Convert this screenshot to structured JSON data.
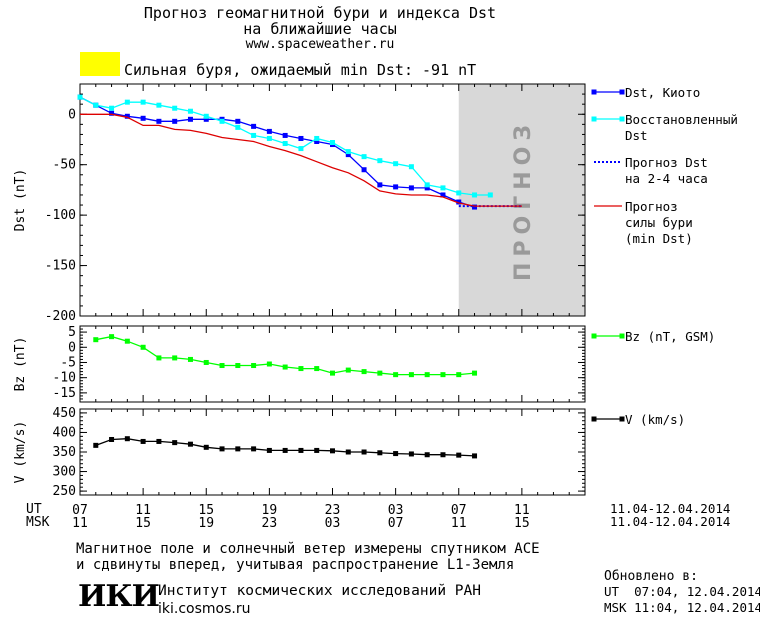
{
  "header": {
    "title_line1": "Прогноз геомагнитной бури и индекса Dst",
    "title_line2": "на ближайшие часы",
    "site": "www.spaceweather.ru"
  },
  "storm": {
    "color": "#ffff00",
    "label": "Сильная буря, ожидаемый min Dst: -91 nT"
  },
  "colors": {
    "dst_kyoto": "#0000ff",
    "dst_restored": "#00ffff",
    "dst_forecast": "#0000ff",
    "storm_forecast": "#dd0000",
    "bz": "#00ff00",
    "v": "#000000",
    "forecast_band": "#d8d8d8"
  },
  "forecast_band_text": "ПРОГНОЗ",
  "time_axis": {
    "ut_label": "UT",
    "msk_label": "MSK",
    "ut_ticks": [
      "07",
      "11",
      "15",
      "19",
      "23",
      "03",
      "07",
      "11"
    ],
    "msk_ticks": [
      "11",
      "15",
      "19",
      "23",
      "03",
      "07",
      "11",
      "15"
    ],
    "date_range_ut": "11.04-12.04.2014",
    "date_range_msk": "11.04-12.04.2014"
  },
  "chart_data": [
    {
      "type": "line",
      "ylabel": "Dst (nT)",
      "ylim": [
        -200,
        30
      ],
      "yticks": [
        0,
        -50,
        -100,
        -150,
        -200
      ],
      "x_unit": "hours since 07 UT 11.04.2014",
      "forecast_from_x": 24,
      "series": [
        {
          "name": "Dst, Киото",
          "marker": "square",
          "x": [
            0,
            1,
            2,
            3,
            4,
            5,
            6,
            7,
            8,
            9,
            10,
            11,
            12,
            13,
            14,
            15,
            16,
            17,
            18,
            19,
            20,
            21,
            22,
            23,
            24,
            25
          ],
          "y": [
            17,
            9,
            1,
            -2,
            -4,
            -7,
            -7,
            -5,
            -5,
            -5,
            -7,
            -12,
            -17,
            -21,
            -24,
            -27,
            -30,
            -40,
            -55,
            -70,
            -72,
            -73,
            -73,
            -80,
            -87,
            -92
          ]
        },
        {
          "name": "Восстановленный Dst",
          "marker": "square",
          "x": [
            0,
            1,
            2,
            3,
            4,
            5,
            6,
            7,
            8,
            9,
            10,
            11,
            12,
            13,
            14,
            15,
            16,
            17,
            18,
            19,
            20,
            21,
            22,
            23,
            24,
            25,
            26
          ],
          "y": [
            17,
            9,
            6,
            12,
            12,
            9,
            6,
            3,
            -2,
            -7,
            -13,
            -21,
            -24,
            -29,
            -34,
            -24,
            -28,
            -37,
            -42,
            -46,
            -49,
            -52,
            -70,
            -73,
            -78,
            -80,
            -80
          ]
        },
        {
          "name": "Прогноз Dst на 2-4 часа",
          "style": "dotted",
          "x": [
            24,
            25,
            26,
            27,
            28
          ],
          "y": [
            -91,
            -91,
            -91,
            -91,
            -91
          ]
        },
        {
          "name": "Прогноз силы бури (min Dst)",
          "style": "solid",
          "x": [
            0,
            1,
            2,
            3,
            4,
            5,
            6,
            7,
            8,
            9,
            10,
            11,
            12,
            13,
            14,
            15,
            16,
            17,
            18,
            19,
            20,
            21,
            22,
            23,
            24,
            25,
            26,
            27,
            28
          ],
          "y": [
            0,
            0,
            0,
            -3,
            -11,
            -11,
            -15,
            -16,
            -19,
            -23,
            -25,
            -27,
            -32,
            -36,
            -41,
            -47,
            -53,
            -58,
            -66,
            -76,
            -79,
            -80,
            -80,
            -82,
            -88,
            -91,
            -91,
            -91,
            -91
          ]
        }
      ]
    },
    {
      "type": "line",
      "ylabel": "Bz (nT)",
      "ylim": [
        -18,
        7
      ],
      "yticks": [
        5,
        0,
        -5,
        -10,
        -15
      ],
      "series": [
        {
          "name": "Bz (nT, GSM)",
          "marker": "square",
          "x": [
            1,
            2,
            3,
            4,
            5,
            6,
            7,
            8,
            9,
            10,
            11,
            12,
            13,
            14,
            15,
            16,
            17,
            18,
            19,
            20,
            21,
            22,
            23,
            24,
            25
          ],
          "y": [
            2.5,
            3.5,
            2,
            0,
            -3.5,
            -3.5,
            -4,
            -5,
            -6,
            -6,
            -6,
            -5.5,
            -6.5,
            -7,
            -7,
            -8.5,
            -7.5,
            -8,
            -8.5,
            -9,
            -9,
            -9,
            -9,
            -9,
            -8.5
          ]
        }
      ]
    },
    {
      "type": "line",
      "ylabel": "V (km/s)",
      "ylim": [
        240,
        460
      ],
      "yticks": [
        450,
        400,
        350,
        300,
        250
      ],
      "series": [
        {
          "name": "V (km/s)",
          "marker": "square",
          "x": [
            1,
            2,
            3,
            4,
            5,
            6,
            7,
            8,
            9,
            10,
            11,
            12,
            13,
            14,
            15,
            16,
            17,
            18,
            19,
            20,
            21,
            22,
            23,
            24,
            25
          ],
          "y": [
            367,
            382,
            384,
            377,
            377,
            374,
            370,
            362,
            358,
            358,
            358,
            354,
            354,
            354,
            354,
            353,
            350,
            350,
            348,
            346,
            345,
            343,
            343,
            342,
            340
          ]
        }
      ]
    }
  ],
  "footer": {
    "note_line1": "Магнитное поле и солнечный ветер измерены спутником ACE",
    "note_line2": "и сдвинуты вперед, учитывая распространение L1-Земля",
    "logo": "ИКИ",
    "institute": "Институт космических исследований РАН",
    "url": "iki.cosmos.ru",
    "updated_label": "Обновлено в:",
    "updated_ut": "UT  07:04, 12.04.2014",
    "updated_msk": "MSK 11:04, 12.04.2014"
  }
}
